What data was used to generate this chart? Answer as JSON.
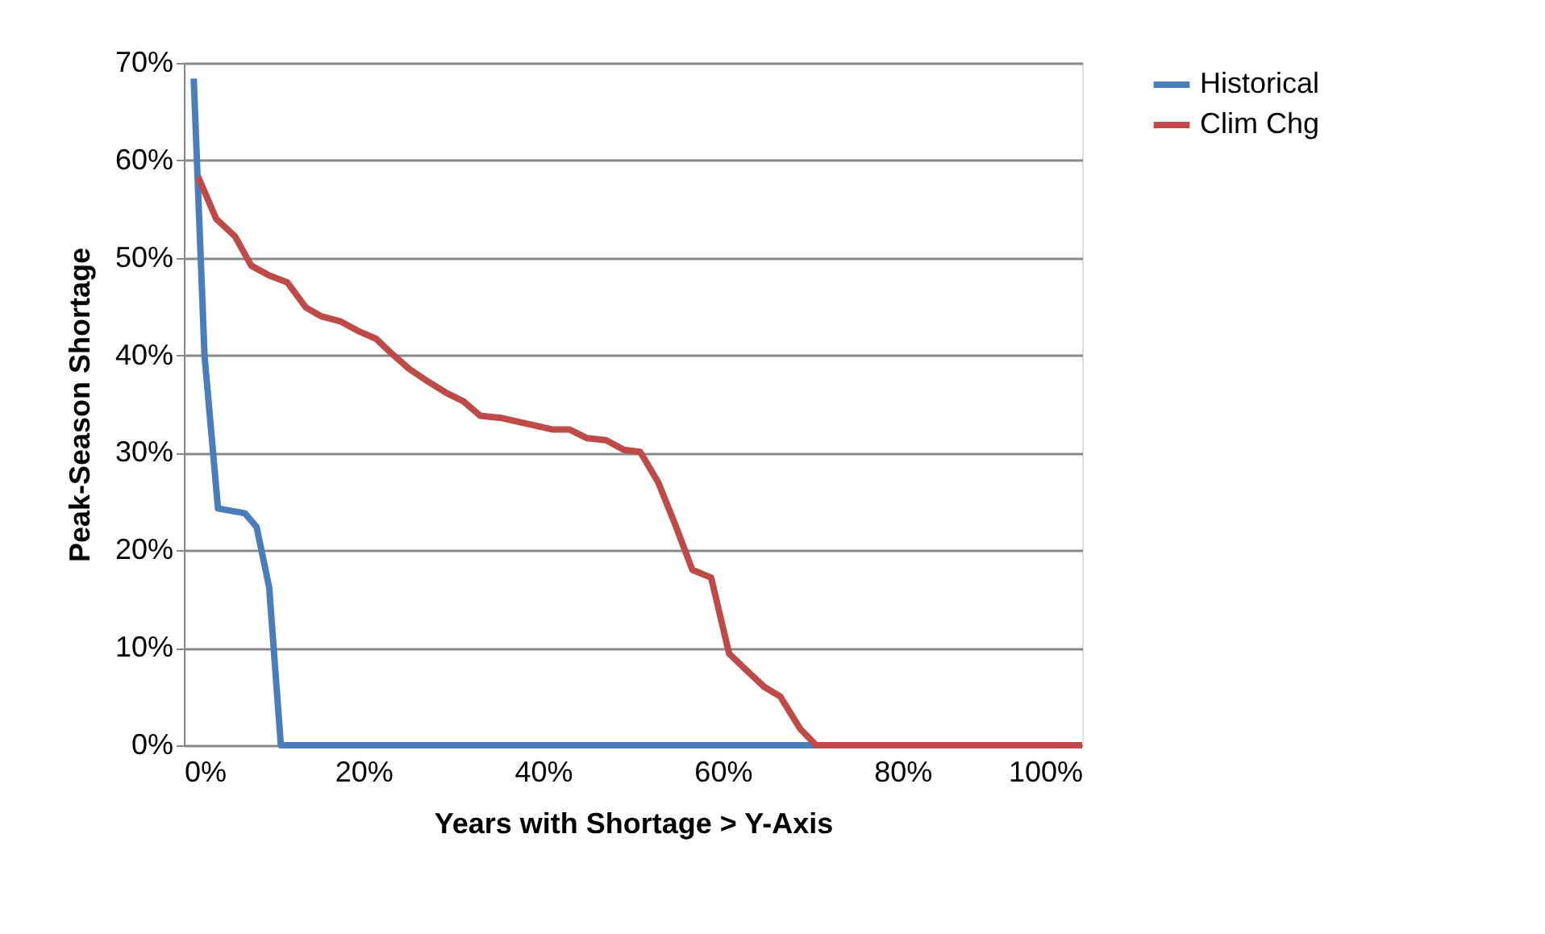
{
  "chart_data": {
    "type": "line",
    "xlabel": "Years with Shortage > Y-Axis",
    "ylabel": "Peak-Season Shortage",
    "xlim": [
      0,
      100
    ],
    "xticks": [
      {
        "value": 0,
        "label": "0%"
      },
      {
        "value": 20,
        "label": "20%"
      },
      {
        "value": 40,
        "label": "40%"
      },
      {
        "value": 60,
        "label": "60%"
      },
      {
        "value": 80,
        "label": "80%"
      },
      {
        "value": 100,
        "label": "100%"
      }
    ],
    "ylim": [
      0,
      70
    ],
    "yticks": [
      {
        "value": 0,
        "label": "0%"
      },
      {
        "value": 10,
        "label": "10%"
      },
      {
        "value": 20,
        "label": "20%"
      },
      {
        "value": 30,
        "label": "30%"
      },
      {
        "value": 40,
        "label": "40%"
      },
      {
        "value": 50,
        "label": "50%"
      },
      {
        "value": 60,
        "label": "60%"
      },
      {
        "value": 70,
        "label": "70%"
      }
    ],
    "grid": "y",
    "legend": "right",
    "marker": "none",
    "line_style": "solid",
    "series": [
      {
        "name": "Historical",
        "color": "#4a7ebb",
        "x": [
          1.1,
          2.3,
          3.8,
          6.8,
          8.1,
          9.5,
          10.8,
          100
        ],
        "values": [
          68.4,
          40,
          24.3,
          23.8,
          22.4,
          16.2,
          0,
          0
        ]
      },
      {
        "name": "Clim Chg",
        "color": "#be4b48",
        "x": [
          1.6,
          3.6,
          5.7,
          7.5,
          9.5,
          11.5,
          13.6,
          15.3,
          17.4,
          19.4,
          21.4,
          23,
          25.1,
          27.2,
          29.3,
          31.1,
          33,
          35.2,
          38.6,
          41,
          42.9,
          44.9,
          47,
          49,
          50.8,
          52.8,
          54.8,
          56.6,
          58.7,
          60.7,
          62.5,
          64.6,
          66.4,
          68.6,
          70.4,
          100
        ],
        "values": [
          58.3,
          54,
          52.2,
          49.2,
          48.2,
          47.5,
          44.9,
          44,
          43.5,
          42.5,
          41.7,
          40.3,
          38.6,
          37.3,
          36.1,
          35.3,
          33.8,
          33.6,
          32.9,
          32.4,
          32.4,
          31.5,
          31.3,
          30.3,
          30.1,
          27,
          22.4,
          18,
          17.2,
          9.4,
          7.8,
          6,
          5,
          1.7,
          0,
          0
        ]
      }
    ]
  }
}
